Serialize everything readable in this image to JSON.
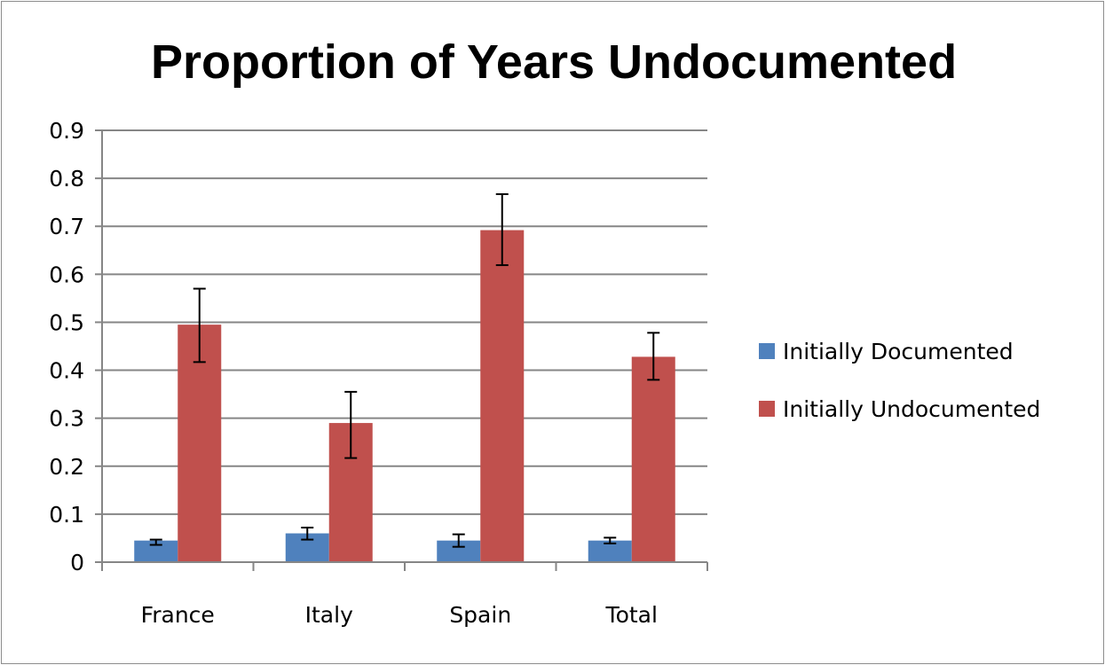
{
  "chart_data": {
    "type": "bar",
    "title": "Proportion of Years Undocumented",
    "xlabel": "",
    "ylabel": "",
    "categories": [
      "France",
      "Italy",
      "Spain",
      "Total"
    ],
    "ylim": [
      0,
      0.9
    ],
    "yticks": [
      "0",
      "0.1",
      "0.2",
      "0.3",
      "0.4",
      "0.5",
      "0.6",
      "0.7",
      "0.8",
      "0.9"
    ],
    "grid": true,
    "legend_position": "right",
    "series": [
      {
        "name": "Initially Documented",
        "color": "#4f81bd",
        "values": [
          0.045,
          0.06,
          0.045,
          0.045
        ],
        "error_low": [
          0.036,
          0.047,
          0.032,
          0.039
        ],
        "error_high": [
          0.047,
          0.072,
          0.058,
          0.051
        ]
      },
      {
        "name": "Initially Undocumented",
        "color": "#c0504d",
        "values": [
          0.495,
          0.29,
          0.692,
          0.428
        ],
        "error_low": [
          0.417,
          0.217,
          0.619,
          0.38
        ],
        "error_high": [
          0.57,
          0.355,
          0.767,
          0.478
        ]
      }
    ]
  }
}
